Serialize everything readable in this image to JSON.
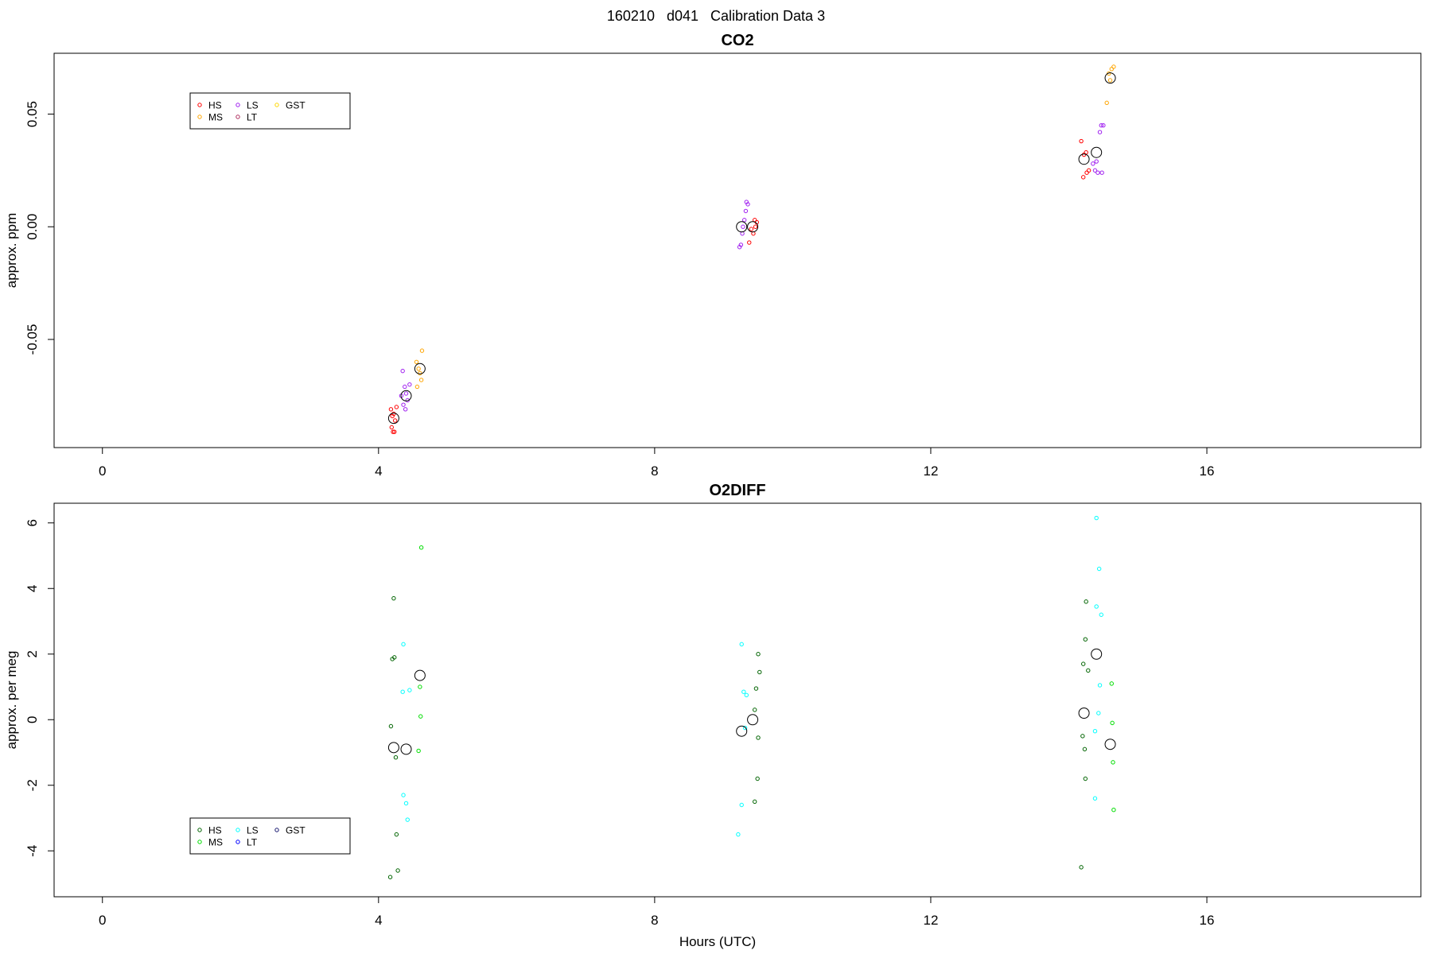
{
  "title": "160210   d041   Calibration Data 3",
  "chart_data": [
    {
      "type": "scatter",
      "title": "CO2",
      "xlabel": "",
      "ylabel": "approx. ppm",
      "xlim": [
        -0.7,
        19.1
      ],
      "ylim": [
        -0.098,
        0.077
      ],
      "xticks": [
        "0",
        "4",
        "8",
        "12",
        "16"
      ],
      "yticks": [
        "-0.05",
        "0.00",
        "0.05"
      ],
      "grid": false,
      "legend": {
        "placement": "top-left",
        "entries": [
          {
            "name": "HS",
            "color": "#ff0000"
          },
          {
            "name": "MS",
            "color": "#ffa500"
          },
          {
            "name": "LS",
            "color": "#a020f0"
          },
          {
            "name": "LT",
            "color": "#b03060"
          },
          {
            "name": "GST",
            "color": "#ffd700"
          }
        ]
      },
      "series": [
        {
          "name": "HS",
          "color": "#ff0000",
          "points": [
            [
              4.18,
              -0.081
            ],
            [
              4.22,
              -0.083
            ],
            [
              4.26,
              -0.08
            ],
            [
              4.2,
              -0.084
            ],
            [
              4.24,
              -0.086
            ],
            [
              4.19,
              -0.089
            ],
            [
              4.23,
              -0.091
            ],
            [
              4.21,
              -0.091
            ],
            [
              9.45,
              0.003
            ],
            [
              9.4,
              -0.001
            ],
            [
              9.48,
              0.002
            ],
            [
              9.43,
              -0.003
            ],
            [
              9.37,
              -0.007
            ],
            [
              9.46,
              0.0
            ],
            [
              14.18,
              0.038
            ],
            [
              14.22,
              0.032
            ],
            [
              14.25,
              0.033
            ],
            [
              14.21,
              0.022
            ],
            [
              14.26,
              0.024
            ],
            [
              14.29,
              0.025
            ]
          ]
        },
        {
          "name": "MS",
          "color": "#ffa500",
          "points": [
            [
              4.55,
              -0.06
            ],
            [
              4.58,
              -0.063
            ],
            [
              4.6,
              -0.065
            ],
            [
              4.62,
              -0.068
            ],
            [
              4.56,
              -0.071
            ],
            [
              4.63,
              -0.055
            ],
            [
              14.55,
              0.055
            ],
            [
              14.6,
              0.065
            ],
            [
              14.62,
              0.07
            ],
            [
              14.65,
              0.071
            ],
            [
              14.58,
              0.068
            ]
          ]
        },
        {
          "name": "LS",
          "color": "#a020f0",
          "points": [
            [
              4.35,
              -0.064
            ],
            [
              4.38,
              -0.071
            ],
            [
              4.4,
              -0.074
            ],
            [
              4.42,
              -0.077
            ],
            [
              4.36,
              -0.079
            ],
            [
              4.39,
              -0.081
            ],
            [
              4.33,
              -0.075
            ],
            [
              4.45,
              -0.07
            ],
            [
              9.25,
              -0.008
            ],
            [
              9.27,
              -0.003
            ],
            [
              9.3,
              0.003
            ],
            [
              9.32,
              0.007
            ],
            [
              9.35,
              0.01
            ],
            [
              9.33,
              0.011
            ],
            [
              9.28,
              0.0
            ],
            [
              9.23,
              -0.009
            ],
            [
              14.35,
              0.028
            ],
            [
              14.4,
              0.029
            ],
            [
              14.45,
              0.042
            ],
            [
              14.47,
              0.045
            ],
            [
              14.5,
              0.045
            ],
            [
              14.42,
              0.024
            ],
            [
              14.38,
              0.025
            ],
            [
              14.48,
              0.024
            ]
          ]
        },
        {
          "name": "Mean",
          "color": "#000000",
          "size": "large",
          "points": [
            [
              4.22,
              -0.085
            ],
            [
              4.4,
              -0.075
            ],
            [
              4.6,
              -0.063
            ],
            [
              9.26,
              0.0
            ],
            [
              9.42,
              0.0
            ],
            [
              14.22,
              0.03
            ],
            [
              14.4,
              0.033
            ],
            [
              14.6,
              0.066
            ]
          ]
        }
      ]
    },
    {
      "type": "scatter",
      "title": "O2DIFF",
      "xlabel": "Hours (UTC)",
      "ylabel": "approx. per meg",
      "xlim": [
        -0.7,
        19.1
      ],
      "ylim": [
        -5.4,
        6.6
      ],
      "xticks": [
        "0",
        "4",
        "8",
        "12",
        "16"
      ],
      "yticks": [
        "-4",
        "-2",
        "0",
        "2",
        "4",
        "6"
      ],
      "grid": false,
      "legend": {
        "placement": "bottom-left",
        "entries": [
          {
            "name": "HS",
            "color": "#006400"
          },
          {
            "name": "MS",
            "color": "#00dd00"
          },
          {
            "name": "LS",
            "color": "#00ffff"
          },
          {
            "name": "LT",
            "color": "#0000ff"
          },
          {
            "name": "GST",
            "color": "#191970"
          }
        ]
      },
      "series": [
        {
          "name": "HS",
          "color": "#006400",
          "points": [
            [
              4.22,
              3.7
            ],
            [
              4.2,
              1.85
            ],
            [
              4.23,
              1.9
            ],
            [
              4.18,
              -0.2
            ],
            [
              4.25,
              -1.15
            ],
            [
              4.26,
              -3.5
            ],
            [
              4.28,
              -4.6
            ],
            [
              4.17,
              -4.8
            ],
            [
              9.5,
              2.0
            ],
            [
              9.52,
              1.45
            ],
            [
              9.47,
              0.95
            ],
            [
              9.45,
              0.3
            ],
            [
              9.5,
              -0.55
            ],
            [
              9.49,
              -1.8
            ],
            [
              9.45,
              -2.5
            ],
            [
              14.25,
              3.6
            ],
            [
              14.24,
              2.45
            ],
            [
              14.21,
              1.7
            ],
            [
              14.28,
              1.5
            ],
            [
              14.2,
              -0.5
            ],
            [
              14.23,
              -0.9
            ],
            [
              14.24,
              -1.8
            ],
            [
              14.18,
              -4.5
            ]
          ]
        },
        {
          "name": "MS",
          "color": "#00dd00",
          "points": [
            [
              4.62,
              5.25
            ],
            [
              4.6,
              1.0
            ],
            [
              4.61,
              0.1
            ],
            [
              4.58,
              -0.95
            ],
            [
              14.62,
              1.1
            ],
            [
              14.63,
              -0.1
            ],
            [
              14.64,
              -1.3
            ],
            [
              14.65,
              -2.75
            ]
          ]
        },
        {
          "name": "LS",
          "color": "#00ffff",
          "points": [
            [
              4.36,
              2.3
            ],
            [
              4.35,
              0.85
            ],
            [
              4.45,
              0.9
            ],
            [
              4.36,
              -2.3
            ],
            [
              4.4,
              -2.55
            ],
            [
              4.42,
              -3.05
            ],
            [
              9.26,
              2.3
            ],
            [
              9.29,
              0.85
            ],
            [
              9.33,
              0.75
            ],
            [
              9.31,
              -0.25
            ],
            [
              9.26,
              -2.6
            ],
            [
              9.21,
              -3.5
            ],
            [
              14.4,
              6.15
            ],
            [
              14.44,
              4.6
            ],
            [
              14.4,
              3.45
            ],
            [
              14.47,
              3.2
            ],
            [
              14.45,
              1.05
            ],
            [
              14.43,
              0.2
            ],
            [
              14.38,
              -0.35
            ],
            [
              14.38,
              -2.4
            ]
          ]
        },
        {
          "name": "Mean",
          "color": "#000000",
          "size": "large",
          "points": [
            [
              4.22,
              -0.85
            ],
            [
              4.4,
              -0.9
            ],
            [
              4.6,
              1.35
            ],
            [
              9.26,
              -0.35
            ],
            [
              9.42,
              0.0
            ],
            [
              14.22,
              0.2
            ],
            [
              14.4,
              2.0
            ],
            [
              14.6,
              -0.75
            ]
          ]
        }
      ]
    }
  ]
}
